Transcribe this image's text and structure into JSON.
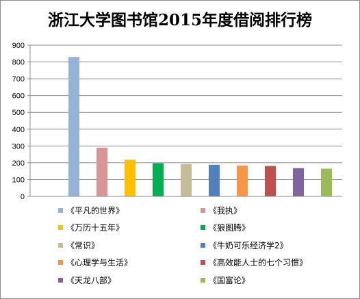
{
  "chart_data": {
    "type": "bar",
    "title": "浙江大学图书馆2015年度借阅排行榜",
    "xlabel": "",
    "ylabel": "",
    "ylim": [
      0,
      900
    ],
    "yticks": [
      0,
      100,
      200,
      300,
      400,
      500,
      600,
      700,
      800,
      900
    ],
    "grid": true,
    "legend_position": "bottom",
    "series": [
      {
        "name": "《平凡的世界》",
        "value": 830,
        "color": "#95b3d7"
      },
      {
        "name": "《我执》",
        "value": 290,
        "color": "#d99594"
      },
      {
        "name": "《万历十五年》",
        "value": 218,
        "color": "#ffc000"
      },
      {
        "name": "《狼图腾》",
        "value": 197,
        "color": "#00b050"
      },
      {
        "name": "《常识》",
        "value": 192,
        "color": "#c4bd97"
      },
      {
        "name": "《牛奶可乐经济学2》",
        "value": 188,
        "color": "#4f81bd"
      },
      {
        "name": "《心理学与生活》",
        "value": 184,
        "color": "#f79646"
      },
      {
        "name": "《高效能人士的七个习惯》",
        "value": 181,
        "color": "#c0504d"
      },
      {
        "name": "《天龙八部》",
        "value": 168,
        "color": "#8064a2"
      },
      {
        "name": "《国富论》",
        "value": 165,
        "color": "#9bbb59"
      }
    ]
  }
}
